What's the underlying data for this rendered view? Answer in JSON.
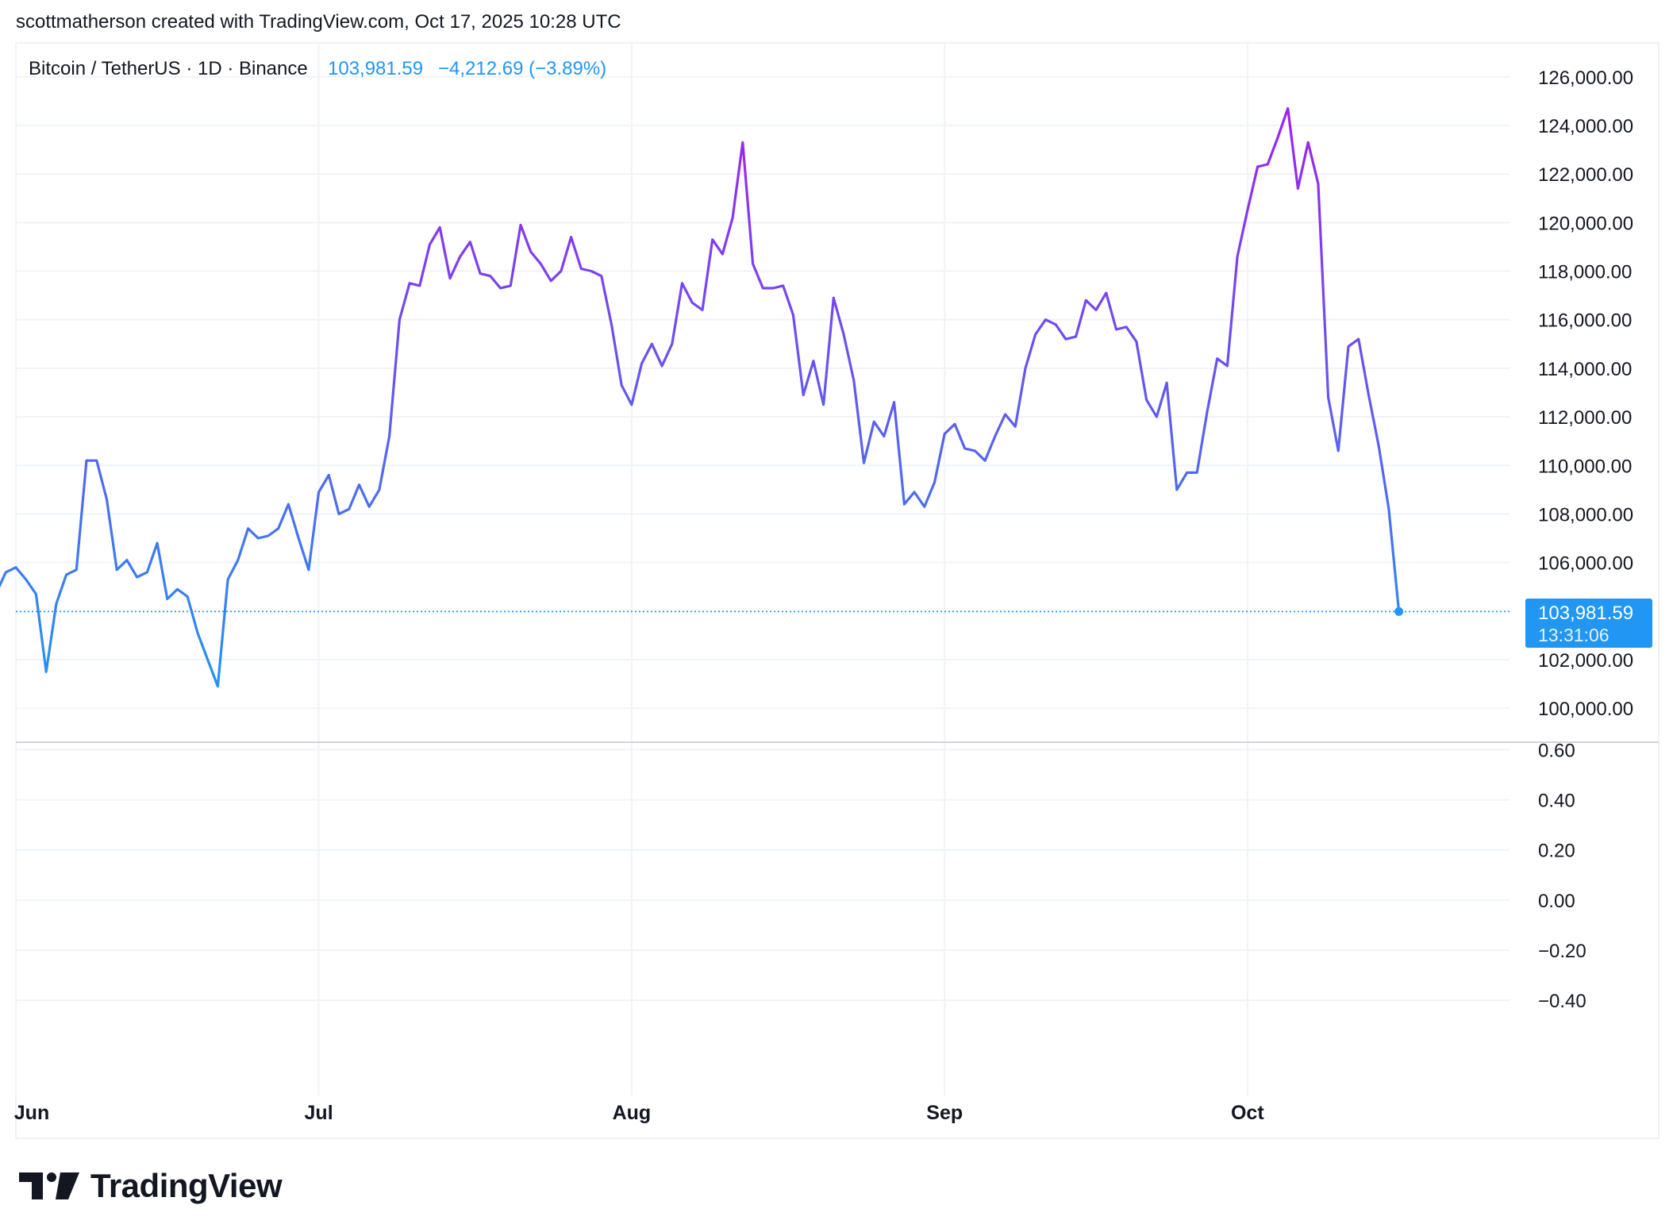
{
  "header": {
    "credit": "scottmatherson created with TradingView.com, Oct 17, 2025 10:28 UTC"
  },
  "legend": {
    "symbol": "Bitcoin / TetherUS · 1D · Binance",
    "price": "103,981.59",
    "change": "−4,212.69 (−3.89%)"
  },
  "last_price_label": {
    "price": "103,981.59",
    "countdown": "13:31:06"
  },
  "brand": {
    "name": "TradingView"
  },
  "colors": {
    "line_low": "#2196f3",
    "line_mid": "#5b5ff0",
    "line_high": "#a020f0",
    "price_tag": "#2196f3",
    "grid": "#f0f3fa",
    "text": "#131722"
  },
  "chart_data": {
    "type": "line",
    "series": [
      {
        "values": [
          104700,
          105600,
          105800,
          105300,
          104700,
          101500,
          104300,
          105500,
          105700,
          110200,
          110200,
          108600,
          105700,
          106100,
          105400,
          105600,
          106800,
          104500,
          104900,
          104600,
          103100,
          102000,
          100900,
          105300,
          106100,
          107400,
          107000,
          107100,
          107400,
          108400,
          107000,
          105700,
          108900,
          109600,
          108000,
          108200,
          109200,
          108300,
          109000,
          111200,
          116000,
          117500,
          117400,
          119100,
          119800,
          117700,
          118600,
          119200,
          117900,
          117800,
          117300,
          117400,
          119900,
          118800,
          118300,
          117600,
          118000,
          119400,
          118100,
          118000,
          117800,
          115800,
          113300,
          112500,
          114200,
          115000,
          114100,
          115000,
          117500,
          116700,
          116400,
          119300,
          118700,
          120200,
          123300,
          118300,
          117300,
          117300,
          117400,
          116200,
          112900,
          114300,
          112500,
          116900,
          115400,
          113500,
          110100,
          111800,
          111200,
          112600,
          108400,
          108900,
          108300,
          109300,
          111300,
          111700,
          110700,
          110600,
          110200,
          111200,
          112100,
          111600,
          114000,
          115400,
          116000,
          115800,
          115200,
          115300,
          116800,
          116400,
          117100,
          115600,
          115700,
          115100,
          112700,
          112000,
          113400,
          109000,
          109700,
          109700,
          112200,
          114400,
          114100,
          118600,
          120500,
          122300,
          122400,
          123500,
          124700,
          121400,
          123300,
          121600,
          112800,
          110600,
          114900,
          115200,
          112900,
          110800,
          108200,
          103981.59
        ]
      }
    ],
    "x_start": "2025-05-30",
    "x_ticks": [
      "Jun",
      "Jul",
      "Aug",
      "Sep",
      "Oct"
    ],
    "y_ticks": [
      "100,000.00",
      "102,000.00",
      "106,000.00",
      "108,000.00",
      "110,000.00",
      "112,000.00",
      "114,000.00",
      "116,000.00",
      "118,000.00",
      "120,000.00",
      "122,000.00",
      "124,000.00",
      "126,000.00"
    ],
    "ylim": [
      98600,
      127400
    ],
    "indicator_ticks": [
      "0.60",
      "0.40",
      "0.20",
      "0.00",
      "−0.20",
      "−0.40"
    ],
    "indicator_ylim": [
      -0.78,
      0.63
    ],
    "last_value": 103981.59,
    "grid": true
  }
}
